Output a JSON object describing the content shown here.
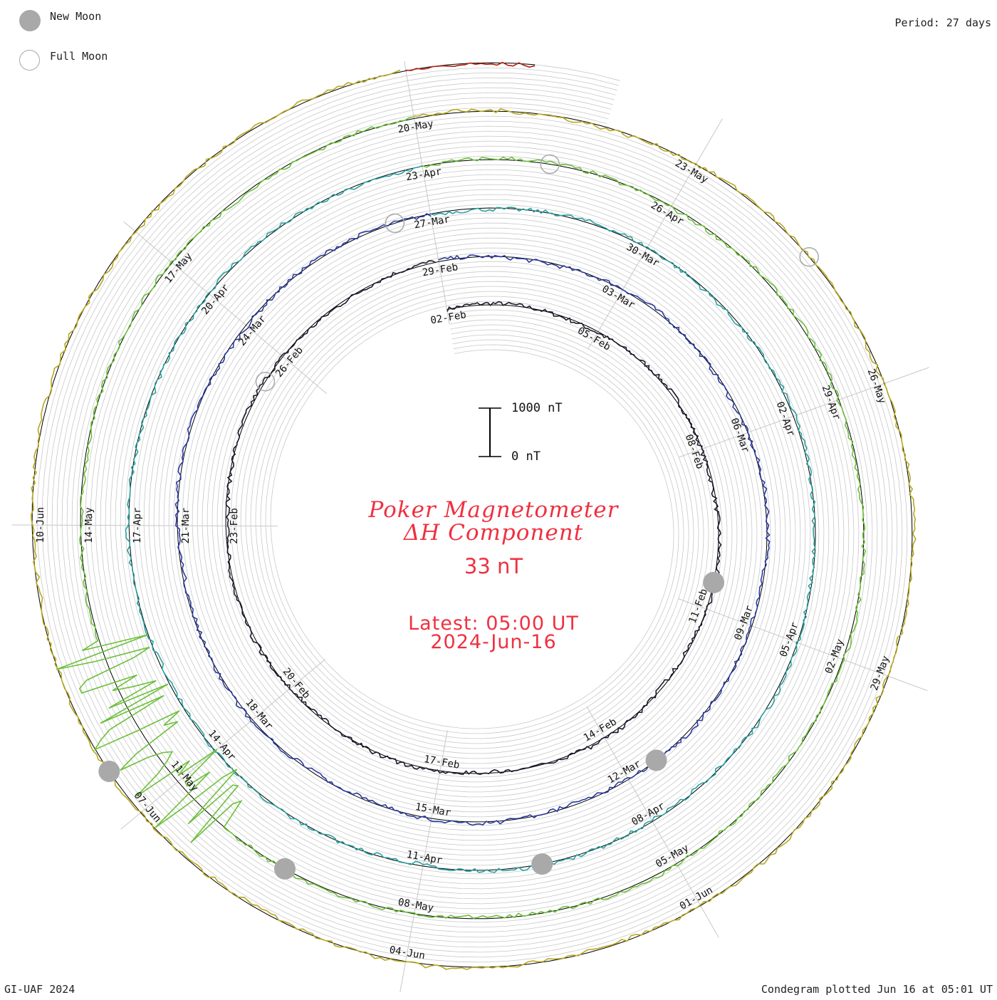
{
  "legend": {
    "new_moon_label": "New Moon",
    "full_moon_label": "Full Moon"
  },
  "period_label": "Period: 27 days",
  "footer": {
    "left": "GI-UAF 2024",
    "right": "Condegram plotted Jun 16 at 05:01 UT"
  },
  "title": {
    "line1": "Poker Magnetometer",
    "line2": "ΔH Component",
    "value": "33 nT",
    "latest": "Latest: 05:00 UT",
    "date": "2024-Jun-16"
  },
  "scale_bar": {
    "top_label": "1000 nT",
    "bottom_label": "0 nT",
    "top_value": 1000,
    "bottom_value": 0
  },
  "colors": {
    "title": "#ef3040",
    "grid": "#c8c8c8",
    "baseline": "#000000",
    "moon_new": "#a9a9a9",
    "moon_full": "#a9a9a9"
  },
  "chart_data": {
    "type": "line",
    "subtype": "condegram (spiral time series)",
    "period_days": 27,
    "start": "2024-Feb-01",
    "end": "2024-Jun-16 05:00 UT",
    "units": "nT",
    "direction": "clockwise",
    "cycles": [
      {
        "color": "#1a1a2e",
        "date_labels": [
          "02-Feb",
          "05-Feb",
          "08-Feb",
          "11-Feb",
          "14-Feb",
          "17-Feb",
          "20-Feb",
          "23-Feb",
          "26-Feb"
        ]
      },
      {
        "color": "#2b3a9e",
        "date_labels": [
          "29-Feb",
          "03-Mar",
          "06-Mar",
          "09-Mar",
          "12-Mar",
          "15-Mar",
          "18-Mar",
          "21-Mar",
          "24-Mar"
        ]
      },
      {
        "color": "#2aa0a0",
        "date_labels": [
          "27-Mar",
          "30-Mar",
          "02-Apr",
          "05-Apr",
          "08-Apr",
          "11-Apr",
          "14-Apr",
          "17-Apr",
          "20-Apr"
        ]
      },
      {
        "color": "#6cbf3a",
        "date_labels": [
          "23-Apr",
          "26-Apr",
          "29-Apr",
          "02-May",
          "05-May",
          "08-May",
          "11-May",
          "14-May",
          "17-May"
        ]
      },
      {
        "color": "#b8a820",
        "date_labels": [
          "20-May",
          "23-May",
          "26-May",
          "29-May",
          "01-Jun",
          "04-Jun",
          "07-Jun",
          "10-Jun"
        ]
      },
      {
        "color": "#b02010",
        "date_labels": []
      }
    ],
    "new_moons": [
      "2024-Feb-09",
      "2024-Mar-10",
      "2024-Apr-08",
      "2024-May-08",
      "2024-Jun-06"
    ],
    "full_moons": [
      "2024-Feb-24",
      "2024-Mar-25",
      "2024-Apr-23",
      "2024-May-23"
    ],
    "storm_annotation": "Large disturbances 10-11 May"
  }
}
